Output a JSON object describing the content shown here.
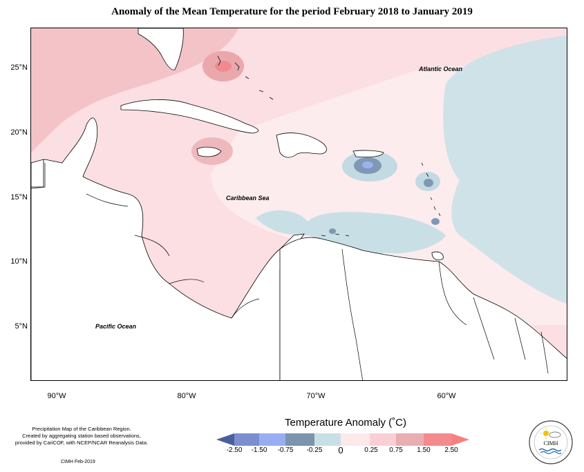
{
  "title": "Anomaly of the Mean Temperature for the period February 2018 to January 2019",
  "map": {
    "latitude_labels": [
      "25°N",
      "20°N",
      "15°N",
      "10°N",
      "5°N"
    ],
    "longitude_labels": [
      "90°W",
      "80°W",
      "70°W",
      "60°W"
    ],
    "ocean_labels": {
      "atlantic": "Atlantic Ocean",
      "caribbean": "Caribbean Sea",
      "pacific": "Pacific Ocean"
    }
  },
  "legend": {
    "title": "Temperature Anomaly (˚C)",
    "ticks": [
      "-2.50",
      "-1.50",
      "-0.75",
      "-0.25",
      "0",
      "0.25",
      "0.75",
      "1.50",
      "2.50"
    ],
    "colors": [
      "#4a5f9c",
      "#7c8ed0",
      "#99aef2",
      "#7c94ad",
      "#c9dfe6",
      "#fde9ea",
      "#f9cfd5",
      "#e8aeb2",
      "#f48a8e",
      "#f5817f"
    ]
  },
  "credit": {
    "lines": [
      "Precipitation Map of the Caribbean Region.",
      "Created by aggregating station based observations,",
      "provided by CariCOF, with NCEP/NCAR Reanalysis Data."
    ],
    "signature": "CIMH Feb-2019"
  },
  "logo": {
    "text": "CIMH"
  }
}
